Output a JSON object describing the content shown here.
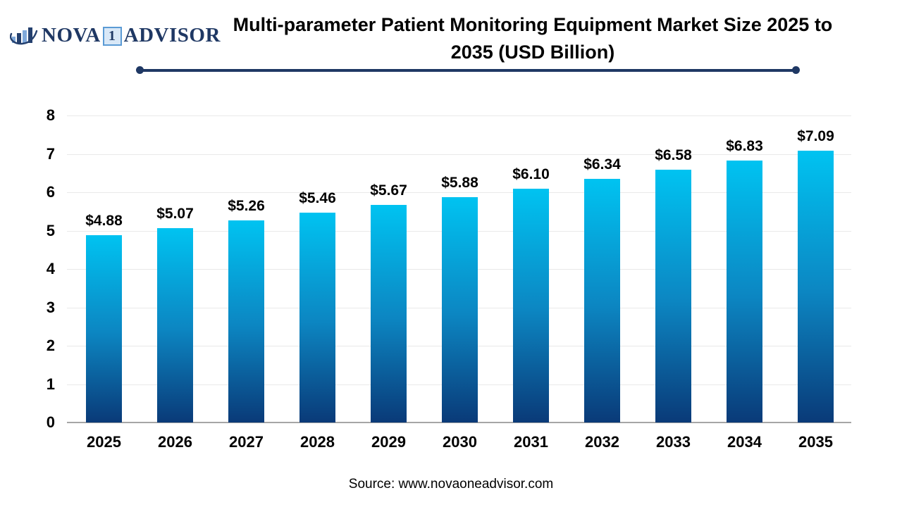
{
  "logo": {
    "part1": "NOVA",
    "badge": "1",
    "part2": "ADVISOR"
  },
  "title": {
    "line1": "Multi-parameter Patient Monitoring Equipment Market Size 2025 to",
    "line2": "2035 (USD Billion)"
  },
  "source": {
    "text": "Source: www.novaoneadvisor.com"
  },
  "colors": {
    "navy": "#1F3864",
    "bar_top": "#00C3F1",
    "bar_mid": "#0C86C2",
    "bar_bottom": "#0A3A78",
    "gridline": "#E9E9E9",
    "axis_line": "#A6A6A6",
    "badge_border": "#5B9BD5",
    "badge_bg": "#D9E8F7",
    "logo_light_blue": "#7FA9DB"
  },
  "chart_data": {
    "type": "bar",
    "title": "Multi-parameter Patient Monitoring Equipment Market Size 2025 to 2035 (USD Billion)",
    "categories": [
      "2025",
      "2026",
      "2027",
      "2028",
      "2029",
      "2030",
      "2031",
      "2032",
      "2033",
      "2034",
      "2035"
    ],
    "values": [
      4.88,
      5.07,
      5.26,
      5.46,
      5.67,
      5.88,
      6.1,
      6.34,
      6.58,
      6.83,
      7.09
    ],
    "value_labels": [
      "$4.88",
      "$5.07",
      "$5.26",
      "$5.46",
      "$5.67",
      "$5.88",
      "$6.10",
      "$6.34",
      "$6.58",
      "$6.83",
      "$7.09"
    ],
    "xlabel": "",
    "ylabel": "",
    "ylim": [
      0,
      8
    ],
    "yticks": [
      0,
      1,
      2,
      3,
      4,
      5,
      6,
      7,
      8
    ],
    "grid": true,
    "legend": false,
    "bar_gradient": [
      "#00C3F1",
      "#0C86C2",
      "#0A3A78"
    ]
  }
}
